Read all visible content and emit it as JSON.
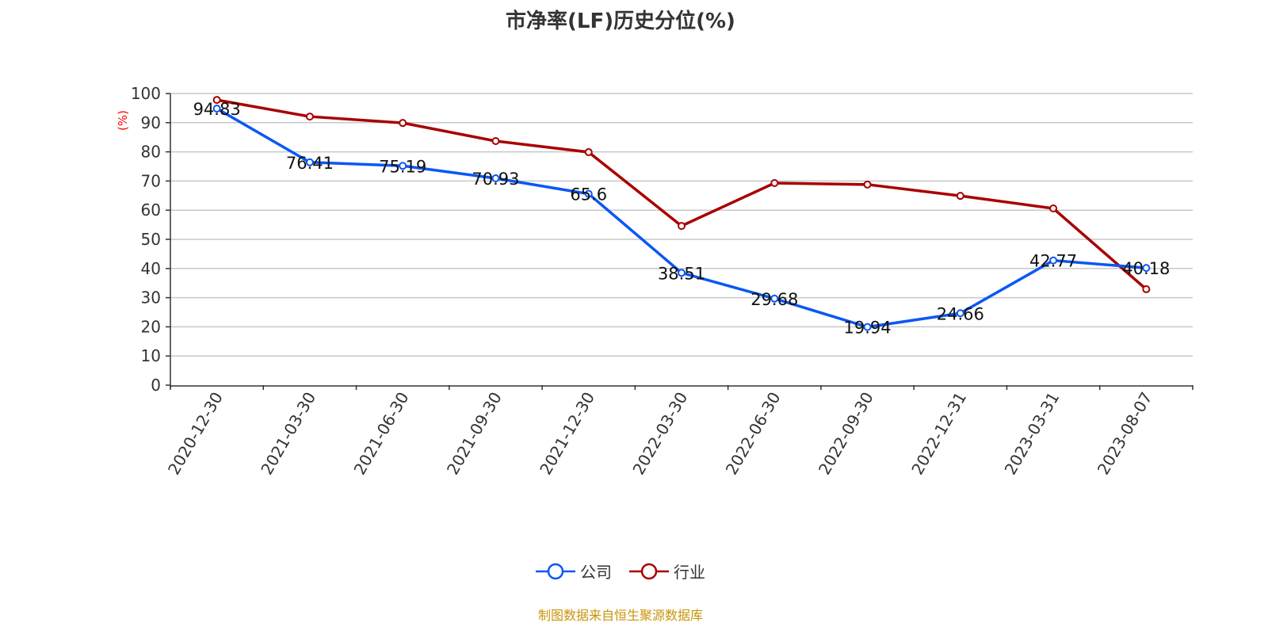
{
  "chart_data": {
    "type": "line",
    "title": "市净率(LF)历史分位(%)",
    "ylabel": "(%)",
    "xlabel": "",
    "ylim": [
      0,
      100
    ],
    "yticks": [
      0,
      10,
      20,
      30,
      40,
      50,
      60,
      70,
      80,
      90,
      100
    ],
    "grid": true,
    "legend_position": "bottom",
    "categories": [
      "2020-12-30",
      "2021-03-30",
      "2021-06-30",
      "2021-09-30",
      "2021-12-30",
      "2022-03-30",
      "2022-06-30",
      "2022-09-30",
      "2022-12-31",
      "2023-03-31",
      "2023-08-07"
    ],
    "series": [
      {
        "name": "公司",
        "color": "#0b57f5",
        "labeled": true,
        "values": [
          94.83,
          76.41,
          75.19,
          70.93,
          65.6,
          38.51,
          29.68,
          19.94,
          24.66,
          42.77,
          40.18
        ]
      },
      {
        "name": "行业",
        "color": "#a80000",
        "labeled": false,
        "values": [
          97.8,
          92.1,
          89.9,
          83.7,
          79.9,
          54.6,
          69.3,
          68.8,
          64.9,
          60.6,
          32.9
        ]
      }
    ]
  },
  "source": "制图数据来自恒生聚源数据库"
}
